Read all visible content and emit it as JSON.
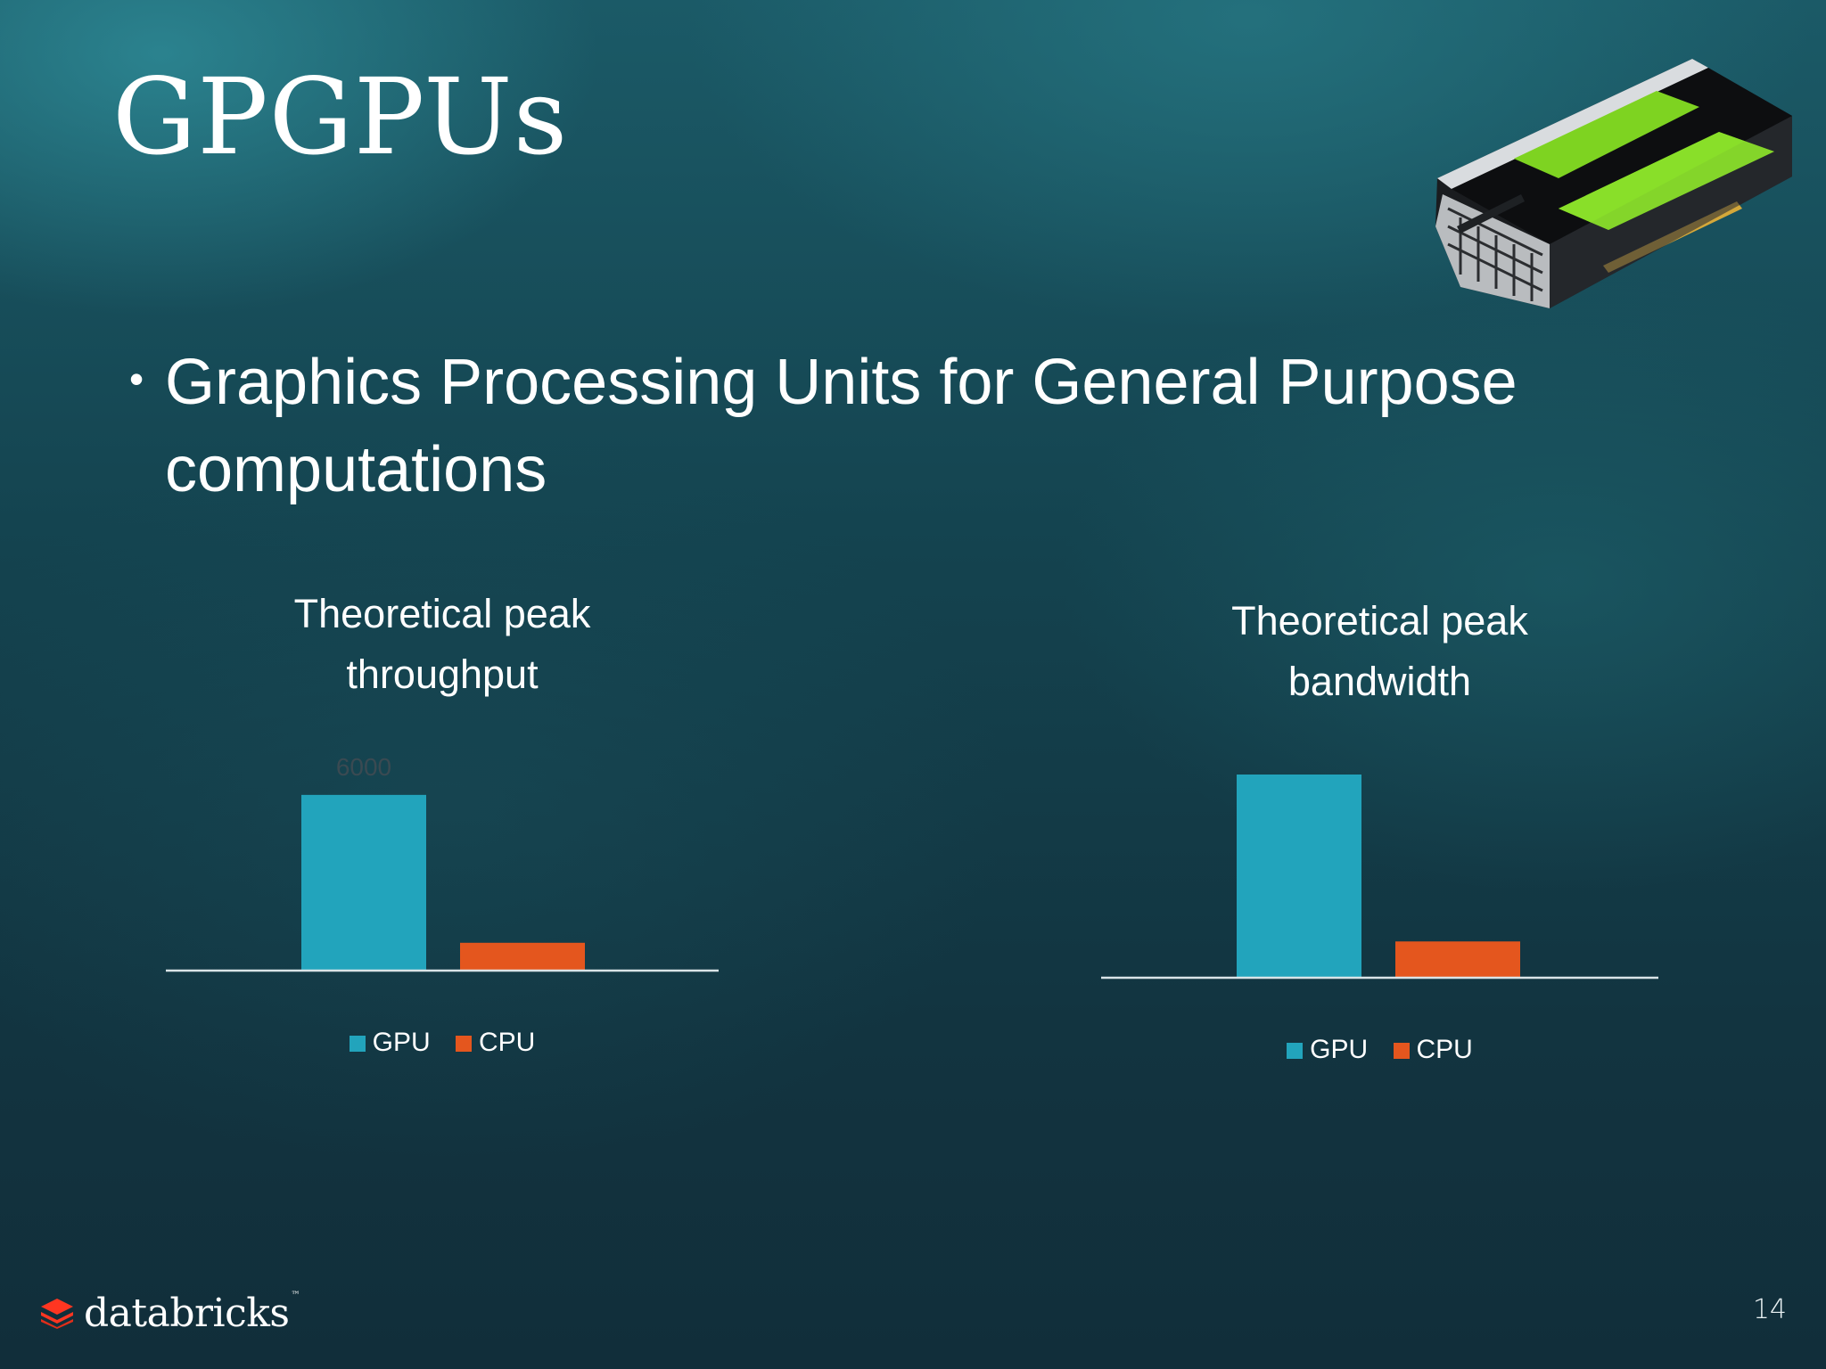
{
  "slide": {
    "title": "GPGPUs",
    "bullet": "Graphics Processing Units for General Purpose computations",
    "page_number": "14"
  },
  "brand": {
    "name": "databricks",
    "tm": "™"
  },
  "colors": {
    "gpu": "#22a4bc",
    "cpu": "#e4561e",
    "axis": "#d9e4e7",
    "background": "#133844"
  },
  "icons": {
    "bullet": "bullet-dot",
    "logo": "databricks-logo-icon",
    "gpu_card": "gpu-card-image"
  },
  "chart_data": [
    {
      "type": "bar",
      "title": "Theoretical peak throughput",
      "categories": [
        "GPU",
        "CPU"
      ],
      "values": [
        6000,
        950
      ],
      "data_labels": [
        "6000",
        ""
      ],
      "legend": [
        "GPU",
        "CPU"
      ],
      "ylim": [
        0,
        7000
      ],
      "grid": false,
      "legend_position": "bottom"
    },
    {
      "type": "bar",
      "title": "Theoretical peak bandwidth",
      "categories": [
        "GPU",
        "CPU"
      ],
      "values": [
        700,
        125
      ],
      "data_labels": [
        "",
        ""
      ],
      "legend": [
        "GPU",
        "CPU"
      ],
      "ylim": [
        0,
        700
      ],
      "grid": false,
      "legend_position": "bottom"
    }
  ]
}
